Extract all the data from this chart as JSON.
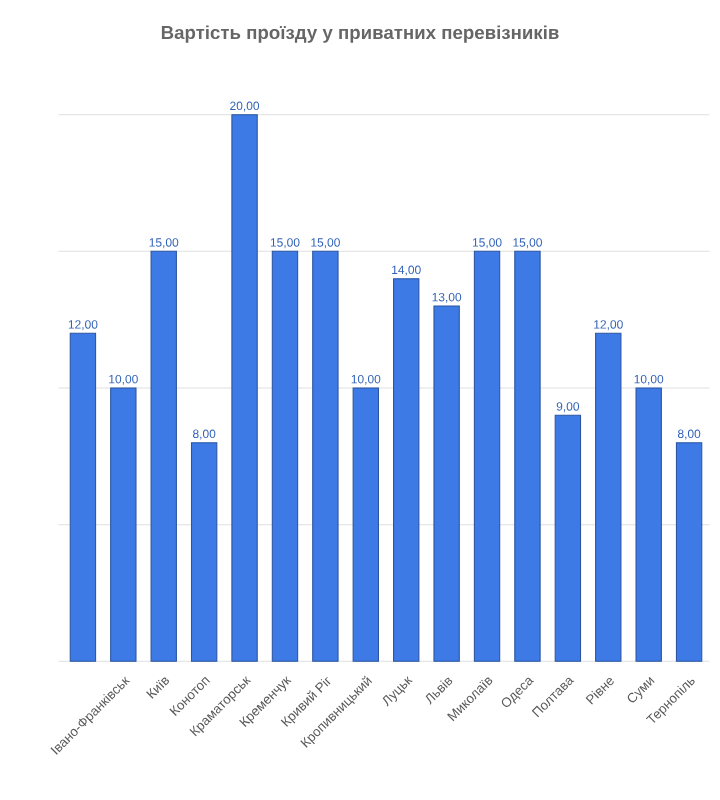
{
  "chart_data": {
    "type": "bar",
    "title": "Вартість проїзду у приватних перевізників",
    "categories": [
      null,
      "Івано-Франківськ",
      "Київ",
      "Конотоп",
      "Краматорськ",
      "Кременчук",
      "Кривий Ріг",
      "Кропивницький",
      "Луцьк",
      "Львів",
      "Миколаїв",
      "Одеса",
      "Полтава",
      "Рівне",
      "Суми",
      "Тернопіль"
    ],
    "values": [
      12,
      10,
      15,
      8,
      20,
      15,
      15,
      10,
      14,
      13,
      15,
      15,
      9,
      12,
      10,
      8
    ],
    "value_labels": [
      "12,00",
      "10,00",
      "15,00",
      "8,00",
      "20,00",
      "15,00",
      "15,00",
      "10,00",
      "14,00",
      "13,00",
      "15,00",
      "15,00",
      "9,00",
      "12,00",
      "10,00",
      "8,00"
    ],
    "color": "#3d7ae6",
    "ylim": [
      0,
      20
    ],
    "yticks": [
      {
        "value": 0,
        "label": null
      },
      {
        "value": 5,
        "label": null
      },
      {
        "value": 10,
        "label": null
      },
      {
        "value": 15,
        "label": null
      },
      {
        "value": 20,
        "label": null
      }
    ],
    "grid": "y",
    "tick_labels": "x"
  }
}
